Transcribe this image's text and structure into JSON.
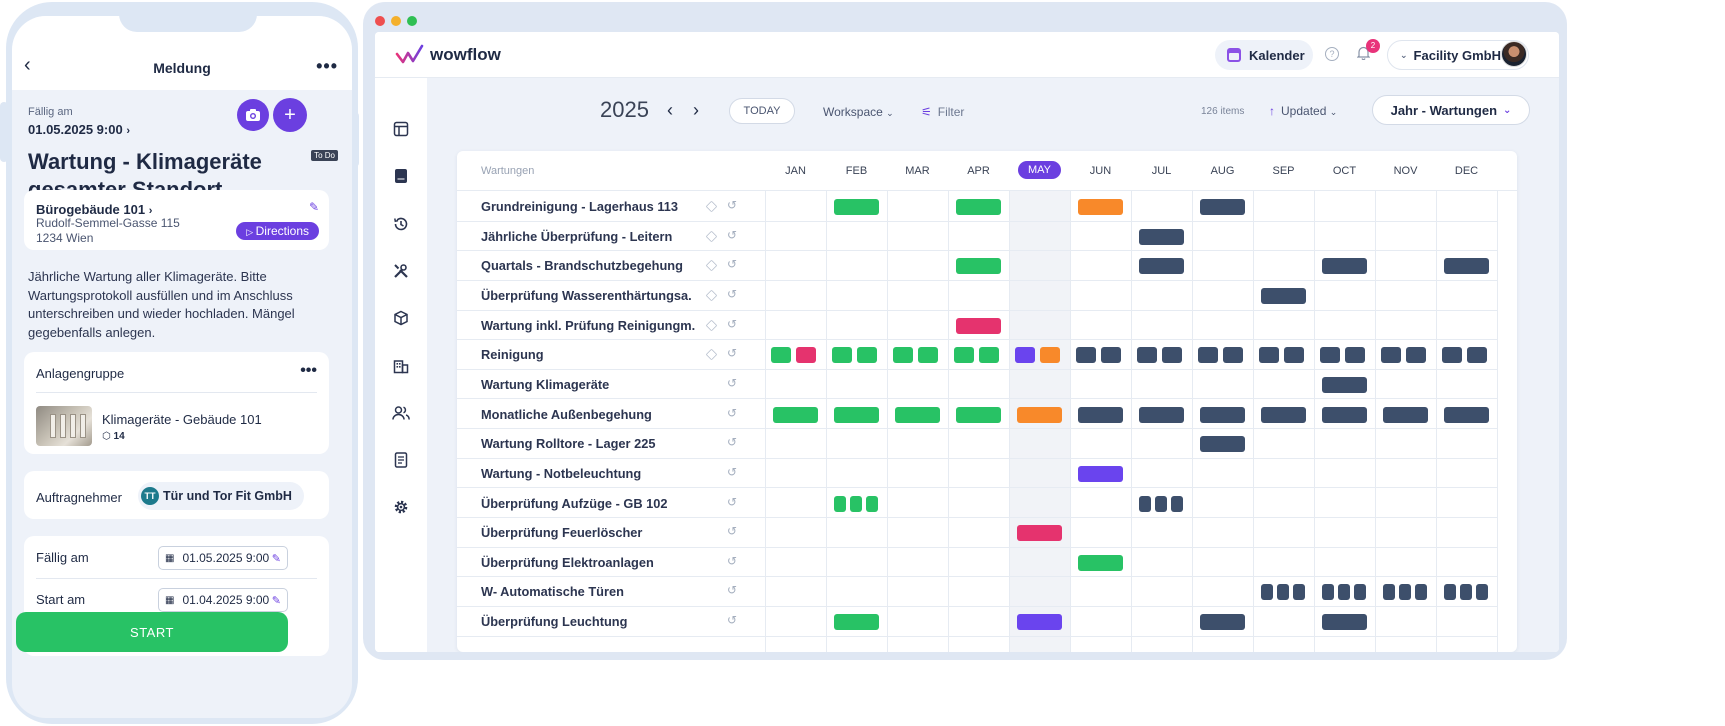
{
  "colors": {
    "accent": "#6b3fe0",
    "green": "#28c265",
    "pink": "#e5336e",
    "orange": "#f8892a",
    "purple": "#6a44ee",
    "slate": "#3d4f6b"
  },
  "phone": {
    "header": {
      "back_icon": "chevron-left-icon",
      "title": "Meldung",
      "more_icon": "more-horizontal-icon"
    },
    "due_label": "Fällig am",
    "due_value": "01.05.2025 9:00",
    "camera_icon": "camera-icon",
    "add_icon": "plus-icon",
    "status_badge": "To Do",
    "title": "Wartung - Klimageräte gesamter Standort",
    "location": {
      "name": "Bürogebäude 101",
      "street": "Rudolf-Semmel-Gasse 115",
      "city": "1234 Wien",
      "directions_label": "Directions"
    },
    "description": "Jährliche Wartung aller Klimageräte. Bitte Wartungsprotokoll ausfüllen und im Anschluss unterschreiben und wieder hochladen. Mängel gegebenfalls anlegen.",
    "asset_group": {
      "header": "Anlagengruppe",
      "name": "Klimageräte - Gebäude 101",
      "count": "14"
    },
    "contractor": {
      "label": "Auftragnehmer",
      "initials": "TT",
      "name": "Tür und Tor Fit GmbH"
    },
    "dates": [
      {
        "label": "Fällig am",
        "value": "01.05.2025 9:00"
      },
      {
        "label": "Start am",
        "value": "01.04.2025 9:00"
      }
    ],
    "start_label": "START"
  },
  "desktop": {
    "logo": "wowflow",
    "calendar_label": "Kalender",
    "notification_count": "2",
    "company": "Facility GmbH",
    "year": "2025",
    "today_label": "TODAY",
    "workspace_label": "Workspace",
    "filter_label": "Filter",
    "items_count": "126 items",
    "sort_label": "Updated",
    "view_label": "Jahr - Wartungen",
    "sidebar_icons": [
      "layout-icon",
      "book-icon",
      "history-icon",
      "tools-icon",
      "cube-icon",
      "building-icon",
      "users-icon",
      "document-icon",
      "settings-icon"
    ],
    "column_header": "Wartungen",
    "months": [
      "JAN",
      "FEB",
      "MAR",
      "APR",
      "MAY",
      "JUN",
      "JUL",
      "AUG",
      "SEP",
      "OCT",
      "NOV",
      "DEC"
    ],
    "current_month_index": 4,
    "rows": [
      {
        "name": "Grundreinigung - Lagerhaus 113",
        "asset": true,
        "events": [
          [
            1,
            1,
            "green"
          ],
          [
            3,
            1,
            "green"
          ],
          [
            5,
            1,
            "orange"
          ],
          [
            7,
            1,
            "slate"
          ]
        ]
      },
      {
        "name": "Jährliche Überprüfung - Leitern",
        "asset": true,
        "events": [
          [
            6,
            1,
            "slate"
          ]
        ]
      },
      {
        "name": "Quartals - Brandschutzbegehung",
        "asset": true,
        "events": [
          [
            3,
            1,
            "green"
          ],
          [
            6,
            1,
            "slate"
          ],
          [
            9,
            1,
            "slate"
          ],
          [
            11,
            1,
            "slate"
          ]
        ]
      },
      {
        "name": "Überprüfung Wasserenthärtungsa.",
        "asset": true,
        "events": [
          [
            8,
            1,
            "slate"
          ]
        ]
      },
      {
        "name": "Wartung inkl. Prüfung Reinigungm.",
        "asset": true,
        "events": [
          [
            3,
            1,
            "pink"
          ]
        ]
      },
      {
        "name": "Reinigung",
        "asset": true,
        "events": [
          [
            0,
            2,
            "green"
          ],
          [
            0,
            2,
            "pink"
          ],
          [
            1,
            2,
            "green"
          ],
          [
            1,
            2,
            "green"
          ],
          [
            2,
            2,
            "green"
          ],
          [
            2,
            2,
            "green"
          ],
          [
            3,
            2,
            "green"
          ],
          [
            3,
            2,
            "green"
          ],
          [
            4,
            2,
            "purple"
          ],
          [
            4,
            2,
            "orange"
          ],
          [
            5,
            2,
            "slate"
          ],
          [
            5,
            2,
            "slate"
          ],
          [
            6,
            2,
            "slate"
          ],
          [
            6,
            2,
            "slate"
          ],
          [
            7,
            2,
            "slate"
          ],
          [
            7,
            2,
            "slate"
          ],
          [
            8,
            2,
            "slate"
          ],
          [
            8,
            2,
            "slate"
          ],
          [
            9,
            2,
            "slate"
          ],
          [
            9,
            2,
            "slate"
          ],
          [
            10,
            2,
            "slate"
          ],
          [
            10,
            2,
            "slate"
          ],
          [
            11,
            2,
            "slate"
          ],
          [
            11,
            2,
            "slate"
          ]
        ]
      },
      {
        "name": "Wartung Klimageräte",
        "asset": false,
        "events": [
          [
            9,
            1,
            "slate"
          ]
        ]
      },
      {
        "name": "Monatliche Außenbegehung",
        "asset": false,
        "events": [
          [
            0,
            1,
            "green"
          ],
          [
            1,
            1,
            "green"
          ],
          [
            2,
            1,
            "green"
          ],
          [
            3,
            1,
            "green"
          ],
          [
            4,
            1,
            "orange"
          ],
          [
            5,
            1,
            "slate"
          ],
          [
            6,
            1,
            "slate"
          ],
          [
            7,
            1,
            "slate"
          ],
          [
            8,
            1,
            "slate"
          ],
          [
            9,
            1,
            "slate"
          ],
          [
            10,
            1,
            "slate"
          ],
          [
            11,
            1,
            "slate"
          ]
        ]
      },
      {
        "name": "Wartung Rolltore - Lager 225",
        "asset": false,
        "events": [
          [
            7,
            1,
            "slate"
          ]
        ]
      },
      {
        "name": "Wartung - Notbeleuchtung",
        "asset": false,
        "events": [
          [
            5,
            1,
            "purple"
          ]
        ]
      },
      {
        "name": "Überprüfung Aufzüge - GB 102",
        "asset": false,
        "events": [
          [
            1,
            3,
            "green"
          ],
          [
            1,
            3,
            "green"
          ],
          [
            1,
            3,
            "green"
          ],
          [
            6,
            3,
            "slate"
          ],
          [
            6,
            3,
            "slate"
          ],
          [
            6,
            3,
            "slate"
          ]
        ]
      },
      {
        "name": "Überprüfung Feuerlöscher",
        "asset": false,
        "events": [
          [
            4,
            1,
            "pink"
          ]
        ]
      },
      {
        "name": "Überprüfung Elektroanlagen",
        "asset": false,
        "events": [
          [
            5,
            1,
            "green"
          ]
        ]
      },
      {
        "name": "W- Automatische Türen",
        "asset": false,
        "events": [
          [
            8,
            3,
            "slate"
          ],
          [
            8,
            3,
            "slate"
          ],
          [
            8,
            3,
            "slate"
          ],
          [
            9,
            3,
            "slate"
          ],
          [
            9,
            3,
            "slate"
          ],
          [
            9,
            3,
            "slate"
          ],
          [
            10,
            3,
            "slate"
          ],
          [
            10,
            3,
            "slate"
          ],
          [
            10,
            3,
            "slate"
          ],
          [
            11,
            3,
            "slate"
          ],
          [
            11,
            3,
            "slate"
          ],
          [
            11,
            3,
            "slate"
          ]
        ]
      },
      {
        "name": "Überprüfung Leuchtung",
        "asset": false,
        "events": [
          [
            1,
            1,
            "green"
          ],
          [
            4,
            1,
            "purple"
          ],
          [
            7,
            1,
            "slate"
          ],
          [
            9,
            1,
            "slate"
          ]
        ]
      }
    ]
  }
}
